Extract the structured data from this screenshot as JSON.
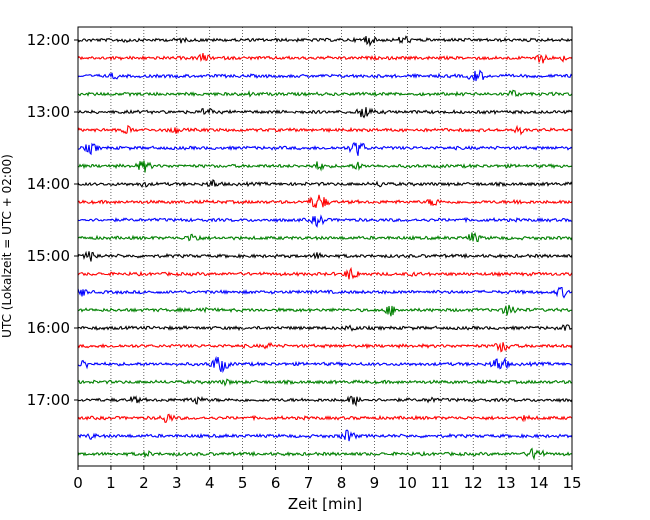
{
  "chart_data": {
    "type": "line",
    "title": "",
    "xlabel": "Zeit  [min]",
    "ylabel": "UTC (Lokalzeit = UTC + 02:00)",
    "xlim": [
      0,
      15
    ],
    "x_ticks": [
      "0",
      "1",
      "2",
      "3",
      "4",
      "5",
      "6",
      "7",
      "8",
      "9",
      "10",
      "11",
      "12",
      "13",
      "14",
      "15"
    ],
    "y_tick_labels": [
      "12:00",
      "13:00",
      "14:00",
      "15:00",
      "16:00",
      "17:00"
    ],
    "grid": "vertical dotted at each minute",
    "colors": [
      "#000000",
      "#ff0000",
      "#0000ff",
      "#008000"
    ],
    "traces": [
      {
        "start": "12:00",
        "color": "#000000",
        "events": [
          {
            "t": 1.4,
            "amp": 0.3
          },
          {
            "t": 3.1,
            "amp": 0.3
          },
          {
            "t": 8.8,
            "amp": 0.6
          },
          {
            "t": 9.9,
            "amp": 0.5
          }
        ]
      },
      {
        "start": "12:15",
        "color": "#ff0000",
        "events": [
          {
            "t": 3.8,
            "amp": 0.5
          },
          {
            "t": 14.1,
            "amp": 0.6
          },
          {
            "t": 14.7,
            "amp": 0.3
          }
        ]
      },
      {
        "start": "12:30",
        "color": "#0000ff",
        "events": [
          {
            "t": 1.1,
            "amp": 0.3
          },
          {
            "t": 12.1,
            "amp": 0.8
          }
        ]
      },
      {
        "start": "12:45",
        "color": "#008000",
        "events": [
          {
            "t": 5.2,
            "amp": 0.2
          },
          {
            "t": 13.2,
            "amp": 0.4
          }
        ]
      },
      {
        "start": "13:00",
        "color": "#000000",
        "events": [
          {
            "t": 3.9,
            "amp": 0.5
          },
          {
            "t": 8.7,
            "amp": 0.8
          }
        ]
      },
      {
        "start": "13:15",
        "color": "#ff0000",
        "events": [
          {
            "t": 1.5,
            "amp": 0.4
          },
          {
            "t": 2.9,
            "amp": 0.4
          },
          {
            "t": 13.4,
            "amp": 0.4
          }
        ]
      },
      {
        "start": "13:30",
        "color": "#0000ff",
        "events": [
          {
            "t": 0.4,
            "amp": 0.6
          },
          {
            "t": 8.5,
            "amp": 0.9
          }
        ]
      },
      {
        "start": "13:45",
        "color": "#008000",
        "events": [
          {
            "t": 2.0,
            "amp": 0.7
          },
          {
            "t": 7.3,
            "amp": 0.5
          },
          {
            "t": 8.5,
            "amp": 0.4
          }
        ]
      },
      {
        "start": "14:00",
        "color": "#000000",
        "events": [
          {
            "t": 2.0,
            "amp": 0.3
          },
          {
            "t": 4.1,
            "amp": 0.5
          },
          {
            "t": 9.2,
            "amp": 0.3
          }
        ]
      },
      {
        "start": "14:15",
        "color": "#ff0000",
        "events": [
          {
            "t": 7.3,
            "amp": 1.0
          },
          {
            "t": 10.8,
            "amp": 0.5
          },
          {
            "t": 13.4,
            "amp": 0.3
          }
        ]
      },
      {
        "start": "14:30",
        "color": "#0000ff",
        "events": [
          {
            "t": 7.3,
            "amp": 0.7
          }
        ]
      },
      {
        "start": "14:45",
        "color": "#008000",
        "events": [
          {
            "t": 3.5,
            "amp": 0.6
          },
          {
            "t": 12.0,
            "amp": 0.6
          }
        ]
      },
      {
        "start": "15:00",
        "color": "#000000",
        "events": [
          {
            "t": 0.4,
            "amp": 0.6
          },
          {
            "t": 7.3,
            "amp": 0.4
          }
        ]
      },
      {
        "start": "15:15",
        "color": "#ff0000",
        "events": [
          {
            "t": 8.3,
            "amp": 0.7
          },
          {
            "t": 10.2,
            "amp": 0.2
          }
        ]
      },
      {
        "start": "15:30",
        "color": "#0000ff",
        "events": [
          {
            "t": 0.1,
            "amp": 0.5
          },
          {
            "t": 14.7,
            "amp": 0.6
          }
        ]
      },
      {
        "start": "15:45",
        "color": "#008000",
        "events": [
          {
            "t": 3.8,
            "amp": 0.4
          },
          {
            "t": 9.5,
            "amp": 0.6
          },
          {
            "t": 13.1,
            "amp": 0.7
          }
        ]
      },
      {
        "start": "16:00",
        "color": "#000000",
        "events": [
          {
            "t": 8.3,
            "amp": 0.4
          },
          {
            "t": 14.8,
            "amp": 0.3
          }
        ]
      },
      {
        "start": "16:15",
        "color": "#ff0000",
        "events": [
          {
            "t": 5.8,
            "amp": 0.3
          },
          {
            "t": 12.9,
            "amp": 0.7
          }
        ]
      },
      {
        "start": "16:30",
        "color": "#0000ff",
        "events": [
          {
            "t": 0.2,
            "amp": 0.5
          },
          {
            "t": 4.3,
            "amp": 1.0
          },
          {
            "t": 12.8,
            "amp": 0.9
          }
        ]
      },
      {
        "start": "16:45",
        "color": "#008000",
        "events": [
          {
            "t": 4.5,
            "amp": 0.3
          }
        ]
      },
      {
        "start": "17:00",
        "color": "#000000",
        "events": [
          {
            "t": 1.7,
            "amp": 0.4
          },
          {
            "t": 3.6,
            "amp": 0.5
          },
          {
            "t": 8.4,
            "amp": 0.6
          },
          {
            "t": 10.7,
            "amp": 0.3
          }
        ]
      },
      {
        "start": "17:15",
        "color": "#ff0000",
        "events": [
          {
            "t": 2.7,
            "amp": 0.6
          },
          {
            "t": 13.6,
            "amp": 0.3
          }
        ]
      },
      {
        "start": "17:30",
        "color": "#0000ff",
        "events": [
          {
            "t": 0.4,
            "amp": 0.3
          },
          {
            "t": 8.2,
            "amp": 0.7
          }
        ]
      },
      {
        "start": "17:45",
        "color": "#008000",
        "events": [
          {
            "t": 2.1,
            "amp": 0.3
          },
          {
            "t": 13.9,
            "amp": 0.8
          }
        ]
      }
    ]
  }
}
